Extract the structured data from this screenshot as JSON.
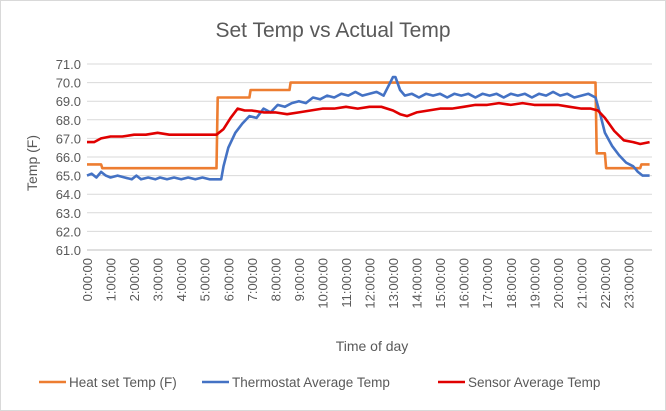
{
  "chart_data": {
    "type": "line",
    "title": "Set Temp vs Actual Temp",
    "xlabel": "Time of day",
    "ylabel": "Temp (F)",
    "ylim": [
      61.0,
      71.0
    ],
    "y_ticks": [
      "61.0",
      "62.0",
      "63.0",
      "64.0",
      "65.0",
      "66.0",
      "67.0",
      "68.0",
      "69.0",
      "70.0",
      "71.0"
    ],
    "x_ticks": [
      "0:00:00",
      "1:00:00",
      "2:00:00",
      "3:00:00",
      "4:00:00",
      "5:00:00",
      "6:00:00",
      "7:00:00",
      "8:00:00",
      "9:00:00",
      "10:00:00",
      "11:00:00",
      "12:00:00",
      "13:00:00",
      "14:00:00",
      "15:00:00",
      "16:00:00",
      "17:00:00",
      "18:00:00",
      "19:00:00",
      "20:00:00",
      "21:00:00",
      "22:00:00",
      "23:00:00"
    ],
    "xlim_hours": [
      0,
      23.9
    ],
    "grid": "horizontal",
    "legend_position": "bottom",
    "series": [
      {
        "name": "Heat set Temp (F)",
        "color": "#ED7D31",
        "points": [
          [
            0,
            65.6
          ],
          [
            0.6,
            65.6
          ],
          [
            0.65,
            65.4
          ],
          [
            5.5,
            65.4
          ],
          [
            5.55,
            69.2
          ],
          [
            6.9,
            69.2
          ],
          [
            6.95,
            69.6
          ],
          [
            8.6,
            69.6
          ],
          [
            8.65,
            70.0
          ],
          [
            21.6,
            70.0
          ],
          [
            21.65,
            66.2
          ],
          [
            22.0,
            66.2
          ],
          [
            22.05,
            65.4
          ],
          [
            23.5,
            65.4
          ],
          [
            23.55,
            65.6
          ],
          [
            23.9,
            65.6
          ]
        ]
      },
      {
        "name": "Thermostat Average Temp",
        "color": "#4472C4",
        "points": [
          [
            0,
            65.0
          ],
          [
            0.2,
            65.1
          ],
          [
            0.4,
            64.9
          ],
          [
            0.6,
            65.2
          ],
          [
            0.8,
            65.0
          ],
          [
            1.0,
            64.9
          ],
          [
            1.3,
            65.0
          ],
          [
            1.6,
            64.9
          ],
          [
            1.9,
            64.8
          ],
          [
            2.1,
            65.0
          ],
          [
            2.3,
            64.8
          ],
          [
            2.6,
            64.9
          ],
          [
            2.9,
            64.8
          ],
          [
            3.1,
            64.9
          ],
          [
            3.4,
            64.8
          ],
          [
            3.7,
            64.9
          ],
          [
            4.0,
            64.8
          ],
          [
            4.3,
            64.9
          ],
          [
            4.6,
            64.8
          ],
          [
            4.9,
            64.9
          ],
          [
            5.2,
            64.8
          ],
          [
            5.5,
            64.8
          ],
          [
            5.7,
            64.8
          ],
          [
            5.8,
            65.5
          ],
          [
            6.0,
            66.5
          ],
          [
            6.3,
            67.3
          ],
          [
            6.6,
            67.8
          ],
          [
            6.9,
            68.2
          ],
          [
            7.2,
            68.1
          ],
          [
            7.5,
            68.6
          ],
          [
            7.8,
            68.4
          ],
          [
            8.1,
            68.8
          ],
          [
            8.4,
            68.7
          ],
          [
            8.7,
            68.9
          ],
          [
            9.0,
            69.0
          ],
          [
            9.3,
            68.9
          ],
          [
            9.6,
            69.2
          ],
          [
            9.9,
            69.1
          ],
          [
            10.2,
            69.3
          ],
          [
            10.5,
            69.2
          ],
          [
            10.8,
            69.4
          ],
          [
            11.1,
            69.3
          ],
          [
            11.4,
            69.5
          ],
          [
            11.7,
            69.3
          ],
          [
            12.0,
            69.4
          ],
          [
            12.3,
            69.5
          ],
          [
            12.6,
            69.3
          ],
          [
            12.8,
            69.8
          ],
          [
            13.0,
            70.3
          ],
          [
            13.1,
            70.3
          ],
          [
            13.3,
            69.6
          ],
          [
            13.5,
            69.3
          ],
          [
            13.8,
            69.4
          ],
          [
            14.1,
            69.2
          ],
          [
            14.4,
            69.4
          ],
          [
            14.7,
            69.3
          ],
          [
            15.0,
            69.4
          ],
          [
            15.3,
            69.2
          ],
          [
            15.6,
            69.4
          ],
          [
            15.9,
            69.3
          ],
          [
            16.2,
            69.4
          ],
          [
            16.5,
            69.2
          ],
          [
            16.8,
            69.4
          ],
          [
            17.1,
            69.3
          ],
          [
            17.4,
            69.4
          ],
          [
            17.7,
            69.2
          ],
          [
            18.0,
            69.4
          ],
          [
            18.3,
            69.3
          ],
          [
            18.6,
            69.4
          ],
          [
            18.9,
            69.2
          ],
          [
            19.2,
            69.4
          ],
          [
            19.5,
            69.3
          ],
          [
            19.8,
            69.5
          ],
          [
            20.1,
            69.3
          ],
          [
            20.4,
            69.4
          ],
          [
            20.7,
            69.2
          ],
          [
            21.0,
            69.3
          ],
          [
            21.3,
            69.4
          ],
          [
            21.6,
            69.2
          ],
          [
            21.8,
            68.3
          ],
          [
            22.0,
            67.3
          ],
          [
            22.3,
            66.6
          ],
          [
            22.6,
            66.1
          ],
          [
            22.9,
            65.7
          ],
          [
            23.2,
            65.5
          ],
          [
            23.4,
            65.2
          ],
          [
            23.6,
            65.0
          ],
          [
            23.9,
            65.0
          ]
        ]
      },
      {
        "name": "Sensor Average Temp",
        "color": "#E00000",
        "points": [
          [
            0,
            66.8
          ],
          [
            0.3,
            66.8
          ],
          [
            0.6,
            67.0
          ],
          [
            1.0,
            67.1
          ],
          [
            1.5,
            67.1
          ],
          [
            2.0,
            67.2
          ],
          [
            2.5,
            67.2
          ],
          [
            3.0,
            67.3
          ],
          [
            3.5,
            67.2
          ],
          [
            4.0,
            67.2
          ],
          [
            4.5,
            67.2
          ],
          [
            5.0,
            67.2
          ],
          [
            5.5,
            67.2
          ],
          [
            5.8,
            67.5
          ],
          [
            6.1,
            68.1
          ],
          [
            6.4,
            68.6
          ],
          [
            6.7,
            68.5
          ],
          [
            7.0,
            68.5
          ],
          [
            7.5,
            68.4
          ],
          [
            8.0,
            68.4
          ],
          [
            8.5,
            68.3
          ],
          [
            9.0,
            68.4
          ],
          [
            9.5,
            68.5
          ],
          [
            10.0,
            68.6
          ],
          [
            10.5,
            68.6
          ],
          [
            11.0,
            68.7
          ],
          [
            11.5,
            68.6
          ],
          [
            12.0,
            68.7
          ],
          [
            12.5,
            68.7
          ],
          [
            13.0,
            68.5
          ],
          [
            13.3,
            68.3
          ],
          [
            13.6,
            68.2
          ],
          [
            14.0,
            68.4
          ],
          [
            14.5,
            68.5
          ],
          [
            15.0,
            68.6
          ],
          [
            15.5,
            68.6
          ],
          [
            16.0,
            68.7
          ],
          [
            16.5,
            68.8
          ],
          [
            17.0,
            68.8
          ],
          [
            17.5,
            68.9
          ],
          [
            18.0,
            68.8
          ],
          [
            18.5,
            68.9
          ],
          [
            19.0,
            68.8
          ],
          [
            19.5,
            68.8
          ],
          [
            20.0,
            68.8
          ],
          [
            20.5,
            68.7
          ],
          [
            21.0,
            68.6
          ],
          [
            21.4,
            68.6
          ],
          [
            21.7,
            68.5
          ],
          [
            22.0,
            68.1
          ],
          [
            22.4,
            67.4
          ],
          [
            22.8,
            66.9
          ],
          [
            23.2,
            66.8
          ],
          [
            23.5,
            66.7
          ],
          [
            23.9,
            66.8
          ]
        ]
      }
    ]
  }
}
